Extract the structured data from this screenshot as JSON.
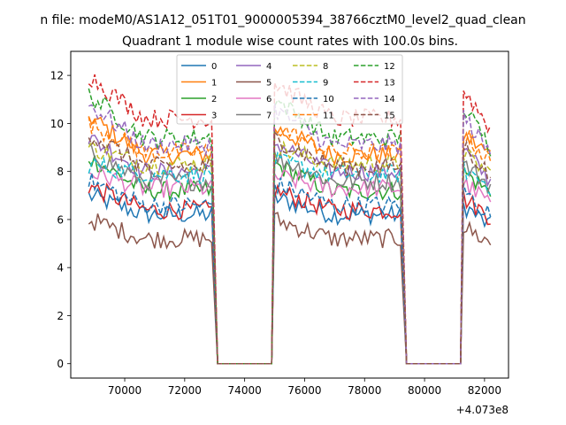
{
  "figure": {
    "suptitle": "n file: modeM0/AS1A12_051T01_9000005394_38766cztM0_level2_quad_clean",
    "title": "Quadrant 1 module wise count rates with 100.0s bins.",
    "x_offset_label": "+4.073e8"
  },
  "chart_data": {
    "type": "line",
    "title": "Quadrant 1 module wise count rates with 100.0s bins.",
    "xlabel": "",
    "ylabel": "",
    "x_offset": 407300000,
    "xlim": [
      68200,
      82800
    ],
    "ylim": [
      -0.6,
      13
    ],
    "x_ticks": [
      70000,
      72000,
      74000,
      76000,
      78000,
      80000,
      82000
    ],
    "x_tick_labels": [
      "70000",
      "72000",
      "74000",
      "76000",
      "78000",
      "80000",
      "82000"
    ],
    "y_ticks": [
      0,
      2,
      4,
      6,
      8,
      10,
      12
    ],
    "y_tick_labels": [
      "0",
      "2",
      "4",
      "6",
      "8",
      "10",
      "12"
    ],
    "grid": false,
    "legend": {
      "placement": "top-center",
      "columns": 4
    },
    "segments": [
      {
        "start": 68800,
        "end": 72900
      },
      {
        "start": 75000,
        "end": 79200
      },
      {
        "start": 81300,
        "end": 82200
      }
    ],
    "gaps": [
      {
        "start": 73100,
        "end": 74900
      },
      {
        "start": 79400,
        "end": 81200
      }
    ],
    "gap_value": 0,
    "series": [
      {
        "name": "0",
        "color": "#1f77b4",
        "dash": "solid",
        "levels": [
          7.0,
          6.2,
          6.9,
          6.0
        ]
      },
      {
        "name": "1",
        "color": "#ff7f0e",
        "dash": "solid",
        "levels": [
          10.3,
          8.7,
          9.8,
          9.0
        ]
      },
      {
        "name": "2",
        "color": "#2ca02c",
        "dash": "solid",
        "levels": [
          8.6,
          7.2,
          8.3,
          7.4
        ]
      },
      {
        "name": "3",
        "color": "#d62728",
        "dash": "solid",
        "levels": [
          7.4,
          6.4,
          7.2,
          6.4
        ]
      },
      {
        "name": "4",
        "color": "#9467bd",
        "dash": "solid",
        "levels": [
          9.4,
          8.0,
          9.2,
          7.9
        ]
      },
      {
        "name": "5",
        "color": "#8c564b",
        "dash": "solid",
        "levels": [
          6.0,
          5.2,
          6.0,
          5.3
        ]
      },
      {
        "name": "6",
        "color": "#e377c2",
        "dash": "solid",
        "levels": [
          8.0,
          7.3,
          7.8,
          7.0
        ]
      },
      {
        "name": "7",
        "color": "#7f7f7f",
        "dash": "solid",
        "levels": [
          8.8,
          7.6,
          8.6,
          7.7
        ]
      },
      {
        "name": "8",
        "color": "#bcbd22",
        "dash": "dashed",
        "levels": [
          9.0,
          8.3,
          9.0,
          8.2
        ]
      },
      {
        "name": "9",
        "color": "#17becf",
        "dash": "dashed",
        "levels": [
          8.3,
          7.9,
          8.4,
          7.7
        ]
      },
      {
        "name": "10",
        "color": "#1f77b4",
        "dash": "dashed",
        "levels": [
          7.6,
          6.6,
          7.5,
          6.5
        ]
      },
      {
        "name": "11",
        "color": "#ff7f0e",
        "dash": "dashed",
        "levels": [
          10.0,
          8.8,
          9.9,
          8.7
        ]
      },
      {
        "name": "12",
        "color": "#2ca02c",
        "dash": "dashed",
        "levels": [
          11.2,
          9.4,
          11.0,
          9.3
        ]
      },
      {
        "name": "13",
        "color": "#d62728",
        "dash": "dashed",
        "levels": [
          12.0,
          10.2,
          11.7,
          10.1
        ]
      },
      {
        "name": "14",
        "color": "#9467bd",
        "dash": "dashed",
        "levels": [
          10.8,
          9.1,
          10.6,
          9.0
        ]
      },
      {
        "name": "15",
        "color": "#8c564b",
        "dash": "dashed",
        "levels": [
          9.6,
          8.2,
          9.4,
          8.1
        ]
      }
    ]
  }
}
